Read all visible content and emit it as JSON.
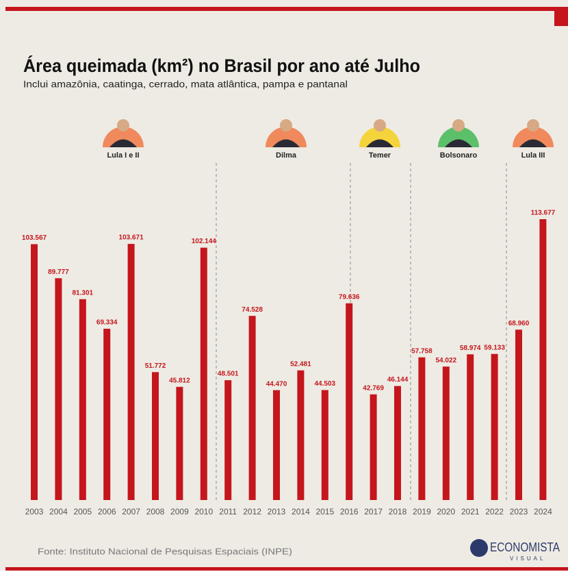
{
  "chart_data": {
    "type": "bar",
    "title": "Área queimada (km²) no Brasil por ano até Julho",
    "subtitle": "Inclui amazônia, caatinga, cerrado, mata atlântica, pampa e pantanal",
    "categories": [
      "2003",
      "2004",
      "2005",
      "2006",
      "2007",
      "2008",
      "2009",
      "2010",
      "2011",
      "2012",
      "2013",
      "2014",
      "2015",
      "2016",
      "2017",
      "2018",
      "2019",
      "2020",
      "2021",
      "2022",
      "2023",
      "2024"
    ],
    "values": [
      103567,
      89777,
      81301,
      69334,
      103671,
      51772,
      45812,
      102144,
      48501,
      74528,
      44470,
      52481,
      44503,
      79636,
      42769,
      46144,
      57758,
      54022,
      58974,
      59133,
      68960,
      113677
    ],
    "value_labels": [
      "103.567",
      "89.777",
      "81.301",
      "69.334",
      "103.671",
      "51.772",
      "45.812",
      "102.144",
      "48.501",
      "74.528",
      "44.470",
      "52.481",
      "44.503",
      "79.636",
      "42.769",
      "46.144",
      "57.758",
      "54.022",
      "58.974",
      "59.133",
      "68.960",
      "113.677"
    ],
    "color": "#c4161c",
    "periods": [
      "Lula I e II",
      "Dilma",
      "Temer",
      "Bolsonaro",
      "Lula III"
    ],
    "source": "Fonte: Instituto Nacional de Pesquisas Espaciais (INPE)",
    "brand": [
      "ECONOMISTA",
      "VISUAL"
    ]
  }
}
